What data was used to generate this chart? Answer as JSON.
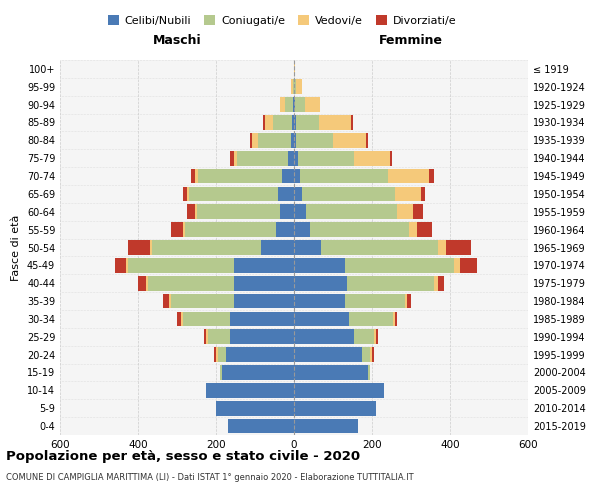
{
  "age_groups": [
    "0-4",
    "5-9",
    "10-14",
    "15-19",
    "20-24",
    "25-29",
    "30-34",
    "35-39",
    "40-44",
    "45-49",
    "50-54",
    "55-59",
    "60-64",
    "65-69",
    "70-74",
    "75-79",
    "80-84",
    "85-89",
    "90-94",
    "95-99",
    "100+"
  ],
  "birth_years": [
    "2015-2019",
    "2010-2014",
    "2005-2009",
    "2000-2004",
    "1995-1999",
    "1990-1994",
    "1985-1989",
    "1980-1984",
    "1975-1979",
    "1970-1974",
    "1965-1969",
    "1960-1964",
    "1955-1959",
    "1950-1954",
    "1945-1949",
    "1940-1944",
    "1935-1939",
    "1930-1934",
    "1925-1929",
    "1920-1924",
    "≤ 1919"
  ],
  "colors": {
    "celibi": "#4a7ab5",
    "coniugati": "#b5c98e",
    "vedovi": "#f5c97a",
    "divorziati": "#c0392b"
  },
  "maschi": {
    "celibi": [
      170,
      200,
      225,
      185,
      175,
      165,
      165,
      155,
      155,
      155,
      85,
      45,
      35,
      40,
      30,
      15,
      8,
      5,
      2,
      0,
      0
    ],
    "coniugati": [
      0,
      0,
      0,
      5,
      20,
      55,
      120,
      160,
      220,
      270,
      280,
      235,
      215,
      230,
      215,
      130,
      85,
      50,
      20,
      3,
      0
    ],
    "vedovi": [
      0,
      0,
      0,
      0,
      5,
      5,
      5,
      5,
      5,
      5,
      5,
      5,
      5,
      5,
      10,
      10,
      15,
      20,
      15,
      5,
      0
    ],
    "divorziati": [
      0,
      0,
      0,
      0,
      5,
      5,
      10,
      15,
      20,
      30,
      55,
      30,
      20,
      10,
      10,
      10,
      5,
      5,
      0,
      0,
      0
    ]
  },
  "femmine": {
    "celibi": [
      165,
      210,
      230,
      190,
      175,
      155,
      140,
      130,
      135,
      130,
      70,
      40,
      30,
      20,
      15,
      10,
      5,
      5,
      2,
      0,
      0
    ],
    "coniugati": [
      0,
      0,
      0,
      5,
      20,
      50,
      115,
      155,
      225,
      280,
      300,
      255,
      235,
      240,
      225,
      145,
      95,
      60,
      25,
      5,
      0
    ],
    "vedovi": [
      0,
      0,
      0,
      0,
      5,
      5,
      5,
      5,
      10,
      15,
      20,
      20,
      40,
      65,
      105,
      90,
      85,
      80,
      40,
      15,
      2
    ],
    "divorziati": [
      0,
      0,
      0,
      0,
      5,
      5,
      5,
      10,
      15,
      45,
      65,
      40,
      25,
      10,
      15,
      5,
      5,
      5,
      0,
      0,
      0
    ]
  },
  "xlim": 600,
  "title": "Popolazione per età, sesso e stato civile - 2020",
  "subtitle": "COMUNE DI CAMPIGLIA MARITTIMA (LI) - Dati ISTAT 1° gennaio 2020 - Elaborazione TUTTITALIA.IT",
  "ylabel": "Fasce di età",
  "xlabel_maschi": "Maschi",
  "xlabel_femmine": "Femmine",
  "legend_labels": [
    "Celibi/Nubili",
    "Coniugati/e",
    "Vedovi/e",
    "Divorziati/e"
  ],
  "bg_color": "#f5f5f5"
}
